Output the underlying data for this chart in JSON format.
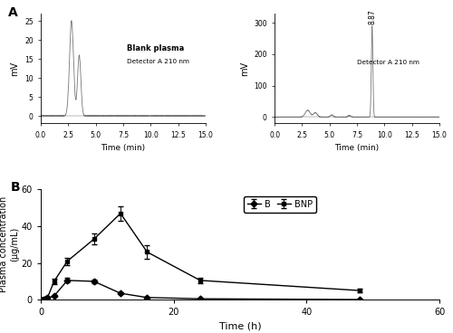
{
  "left_chromatogram": {
    "title": "Blank plasma",
    "label": "Detector A 210 nm",
    "xlim": [
      0,
      15.0
    ],
    "ylim": [
      -2,
      27
    ],
    "xticks": [
      0.0,
      2.5,
      5.0,
      7.5,
      10.0,
      12.5,
      15.0
    ],
    "yticks": [
      0,
      5,
      10,
      15,
      20,
      25
    ],
    "xlabel": "Time (min)",
    "ylabel": "mV",
    "peaks": [
      {
        "mu": 2.8,
        "sigma": 0.18,
        "amp": 25
      },
      {
        "mu": 3.5,
        "sigma": 0.15,
        "amp": 16
      }
    ]
  },
  "right_chromatogram": {
    "label": "Detector A 210 nm",
    "rt_label": "8.87",
    "xlim": [
      0,
      15.0
    ],
    "ylim": [
      -20,
      330
    ],
    "xticks": [
      0.0,
      2.5,
      5.0,
      7.5,
      10.0,
      12.5,
      15.0
    ],
    "yticks": [
      0,
      100,
      200,
      300
    ],
    "xlabel": "Time (min)",
    "ylabel": "mV",
    "peaks": [
      {
        "mu": 8.87,
        "sigma": 0.07,
        "amp": 290
      },
      {
        "mu": 3.0,
        "sigma": 0.22,
        "amp": 22
      },
      {
        "mu": 3.7,
        "sigma": 0.18,
        "amp": 14
      },
      {
        "mu": 5.2,
        "sigma": 0.14,
        "amp": 7
      },
      {
        "mu": 6.8,
        "sigma": 0.14,
        "amp": 5
      }
    ]
  },
  "pk_curve": {
    "B_times": [
      0,
      0.5,
      1,
      2,
      4,
      8,
      12,
      16,
      24,
      48
    ],
    "B_values": [
      0,
      0.3,
      1,
      2,
      10.5,
      10.0,
      3.5,
      1.2,
      0.5,
      0.1
    ],
    "B_errors": [
      0,
      0.1,
      0.3,
      0.4,
      1.2,
      1.0,
      0.5,
      0.3,
      0.1,
      0.05
    ],
    "BNP_times": [
      0,
      0.5,
      1,
      2,
      4,
      8,
      12,
      16,
      24,
      48
    ],
    "BNP_values": [
      0,
      0.5,
      1,
      10.0,
      21.0,
      33.0,
      47.0,
      26.0,
      10.5,
      5.0
    ],
    "BNP_errors": [
      0,
      0.2,
      0.5,
      1.5,
      2.0,
      3.0,
      4.0,
      3.5,
      1.5,
      0.8
    ],
    "xlabel": "Time (h)",
    "ylabel": "Plasma concentration\n(μg/mL)",
    "xlim": [
      0,
      60
    ],
    "ylim": [
      0,
      60
    ],
    "xticks": [
      0,
      20,
      40,
      60
    ],
    "yticks": [
      0,
      20,
      40,
      60
    ]
  },
  "panel_A_label": "A",
  "panel_B_label": "B",
  "legend_B": "B",
  "legend_BNP": "BNP",
  "line_color": "#777777"
}
